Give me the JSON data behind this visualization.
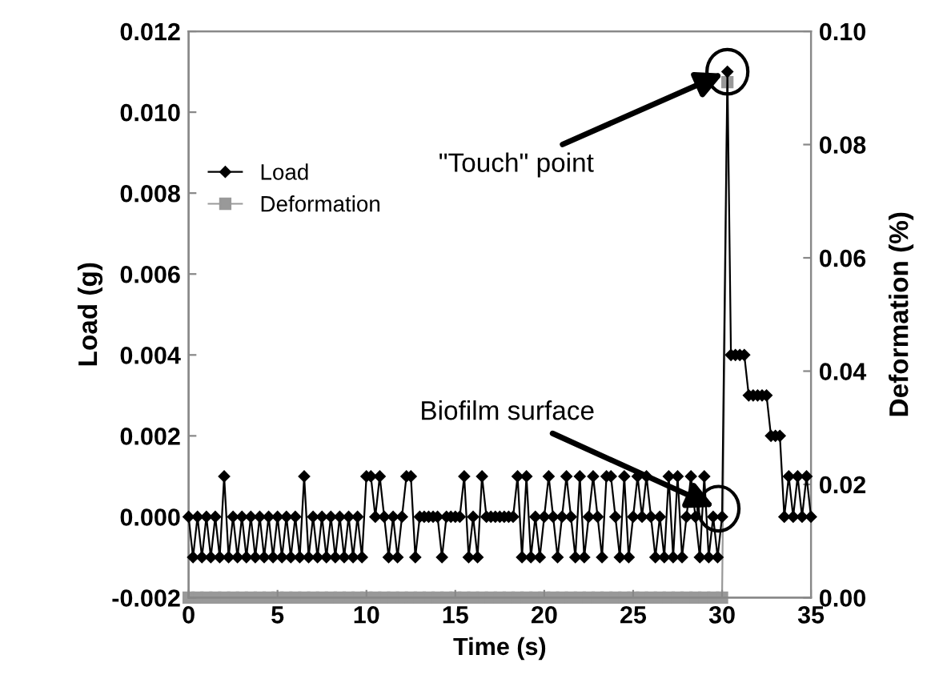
{
  "chart_data": {
    "type": "line",
    "xlabel": "Time (s)",
    "ylabel": "Load (g)",
    "y2label": "Deformation (%)",
    "xlim": [
      0,
      35
    ],
    "xticks": [
      0,
      5,
      10,
      15,
      20,
      25,
      30,
      35
    ],
    "ylim": [
      -0.002,
      0.012
    ],
    "yticks": [
      {
        "value": -0.002,
        "label": "-0.002"
      },
      {
        "value": 0,
        "label": "0.000"
      },
      {
        "value": 0.002,
        "label": "0.002"
      },
      {
        "value": 0.004,
        "label": "0.004"
      },
      {
        "value": 0.006,
        "label": "0.006"
      },
      {
        "value": 0.008,
        "label": "0.008"
      },
      {
        "value": 0.01,
        "label": "0.010"
      },
      {
        "value": 0.012,
        "label": "0.012"
      }
    ],
    "y2lim": [
      0,
      0.1
    ],
    "y2ticks": [
      {
        "value": 0,
        "label": "0.00"
      },
      {
        "value": 0.02,
        "label": "0.02"
      },
      {
        "value": 0.04,
        "label": "0.04"
      },
      {
        "value": 0.06,
        "label": "0.06"
      },
      {
        "value": 0.08,
        "label": "0.08"
      },
      {
        "value": 0.1,
        "label": "0.10"
      }
    ],
    "grid": false,
    "legend": "left",
    "line_style": "solid",
    "series": [
      {
        "name": "Load",
        "color": "#000000",
        "marker": "diamond",
        "x": [
          0,
          0.25,
          0.5,
          0.75,
          1,
          1.25,
          1.5,
          1.75,
          2,
          2.25,
          2.5,
          2.75,
          3,
          3.25,
          3.5,
          3.75,
          4,
          4.25,
          4.5,
          4.75,
          5,
          5.25,
          5.5,
          5.75,
          6,
          6.25,
          6.5,
          6.75,
          7,
          7.25,
          7.5,
          7.75,
          8,
          8.25,
          8.5,
          8.75,
          9,
          9.25,
          9.5,
          9.75,
          10,
          10.25,
          10.5,
          10.75,
          11,
          11.25,
          11.5,
          11.75,
          12,
          12.25,
          12.5,
          12.75,
          13,
          13.25,
          13.5,
          13.75,
          14,
          14.25,
          14.5,
          14.75,
          15,
          15.25,
          15.5,
          15.75,
          16,
          16.25,
          16.5,
          16.75,
          17,
          17.25,
          17.5,
          17.75,
          18,
          18.25,
          18.5,
          18.75,
          19,
          19.25,
          19.5,
          19.75,
          20,
          20.25,
          20.5,
          20.75,
          21,
          21.25,
          21.5,
          21.75,
          22,
          22.25,
          22.5,
          22.75,
          23,
          23.25,
          23.5,
          23.75,
          24,
          24.25,
          24.5,
          24.75,
          25,
          25.25,
          25.5,
          25.75,
          26,
          26.25,
          26.5,
          26.75,
          27,
          27.25,
          27.5,
          27.75,
          28,
          28.25,
          28.5,
          28.75,
          29,
          29.25,
          29.5,
          29.75,
          30,
          30.3,
          30.5,
          30.75,
          31,
          31.25,
          31.5,
          31.75,
          32,
          32.25,
          32.5,
          32.75,
          33,
          33.25,
          33.5,
          33.75,
          34,
          34.25,
          34.5,
          34.75,
          35
        ],
        "values": [
          0,
          -0.001,
          0,
          -0.001,
          0,
          -0.001,
          0,
          -0.001,
          0.001,
          -0.001,
          0,
          -0.001,
          0,
          -0.001,
          0,
          -0.001,
          0,
          -0.001,
          0,
          -0.001,
          0,
          -0.001,
          0,
          -0.001,
          0,
          -0.001,
          0.001,
          -0.001,
          0,
          -0.001,
          0,
          -0.001,
          0,
          -0.001,
          0,
          -0.001,
          0,
          -0.001,
          0,
          -0.001,
          0.001,
          0.001,
          0,
          0.001,
          0,
          -0.001,
          0,
          -0.001,
          0,
          0.001,
          0.001,
          -0.001,
          0,
          0,
          0,
          0,
          0,
          -0.001,
          0,
          0,
          0,
          0,
          0.001,
          -0.001,
          0,
          -0.001,
          0.001,
          0,
          0,
          0,
          0,
          0,
          0,
          0,
          0.001,
          -0.001,
          0.001,
          -0.001,
          0,
          -0.001,
          0,
          0.001,
          0,
          -0.001,
          0,
          0.001,
          0,
          -0.001,
          0.001,
          -0.001,
          0,
          0.001,
          0,
          -0.001,
          0.001,
          0.001,
          0,
          -0.001,
          0.001,
          -0.001,
          0,
          0.001,
          0,
          0.001,
          0,
          -0.001,
          0,
          -0.001,
          0.001,
          -0.001,
          0.001,
          -0.001,
          0,
          0.001,
          0,
          -0.001,
          0.001,
          -0.001,
          0,
          -0.001,
          0,
          0.011,
          0.004,
          0.004,
          0.004,
          0.004,
          0.003,
          0.003,
          0.003,
          0.003,
          0.003,
          0.002,
          0.002,
          0.002,
          0,
          0.001,
          0,
          0.001,
          0,
          0.001,
          0
        ]
      },
      {
        "name": "Deformation",
        "color": "#999999",
        "marker": "square",
        "axis": "y2",
        "x": [
          0,
          0.5,
          1,
          1.5,
          2,
          2.5,
          3,
          3.5,
          4,
          4.5,
          5,
          5.5,
          6,
          6.5,
          7,
          7.5,
          8,
          8.5,
          9,
          9.5,
          10,
          10.5,
          11,
          11.5,
          12,
          12.5,
          13,
          13.5,
          14,
          14.5,
          15,
          15.5,
          16,
          16.5,
          17,
          17.5,
          18,
          18.5,
          19,
          19.5,
          20,
          20.5,
          21,
          21.5,
          22,
          22.5,
          23,
          23.5,
          24,
          24.5,
          25,
          25.5,
          26,
          26.5,
          27,
          27.5,
          28,
          28.5,
          29,
          29.5,
          30,
          30.3
        ],
        "values": [
          0,
          0,
          0,
          0,
          0,
          0,
          0,
          0,
          0,
          0,
          0,
          0,
          0,
          0,
          0,
          0,
          0,
          0,
          0,
          0,
          0,
          0,
          0,
          0,
          0,
          0,
          0,
          0,
          0,
          0,
          0,
          0,
          0,
          0,
          0,
          0,
          0,
          0,
          0,
          0,
          0,
          0,
          0,
          0,
          0,
          0,
          0,
          0,
          0,
          0,
          0,
          0,
          0,
          0,
          0,
          0,
          0,
          0,
          0,
          0,
          0,
          0.091
        ]
      }
    ],
    "annotations": [
      {
        "text": "\"Touch\" point",
        "x": 30.3,
        "y": 0.011
      },
      {
        "text": "Biofilm surface",
        "x": 29.8,
        "y": 0.0002
      }
    ]
  }
}
